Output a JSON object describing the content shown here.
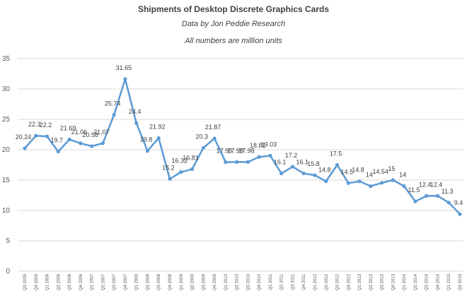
{
  "chart_data": {
    "type": "line",
    "title": "Shipments of Desktop Discrete Graphics Cards",
    "subtitle_1": "Data by Jon Peddie Research",
    "subtitle_2": "All numbers are million units",
    "xlabel": "",
    "ylabel": "",
    "ylim": [
      0,
      35
    ],
    "yticks": [
      0,
      5,
      10,
      15,
      20,
      25,
      30,
      35
    ],
    "grid": true,
    "legend": "none",
    "series_color": "#5b9bd5",
    "categories": [
      "Q3 2005",
      "Q4 2005",
      "Q1 2006",
      "Q2 2006",
      "Q3 2006",
      "Q4 2006",
      "Q1 2007",
      "Q2 2007",
      "Q3 2007",
      "Q4 2007",
      "Q1 2008",
      "Q2 2008",
      "Q3 2008",
      "Q4 2008",
      "Q1 2009",
      "Q2 2009",
      "Q3 2009",
      "Q4 2009",
      "Q1 2010",
      "Q2 2010",
      "Q3 2010",
      "Q4 2010",
      "Q1 2011",
      "Q2 2011",
      "Q3 2011",
      "Q4 2011",
      "Q1 2012",
      "Q2 2012",
      "Q3 2012",
      "Q4 2012",
      "Q1 2013",
      "Q2 2013",
      "Q3 2013",
      "Q4 2013",
      "Q1 2014",
      "Q2 2014",
      "Q3 2014",
      "Q4 2014",
      "Q1 2015",
      "Q2 2015"
    ],
    "values": [
      20.24,
      22.3,
      22.2,
      19.7,
      21.69,
      21.06,
      20.58,
      21.07,
      25.74,
      31.65,
      24.4,
      19.8,
      21.92,
      15.2,
      16.32,
      16.81,
      20.3,
      21.87,
      17.96,
      17.98,
      17.98,
      18.81,
      19.03,
      16.1,
      17.2,
      16.1,
      15.8,
      14.8,
      17.5,
      14.5,
      14.8,
      14,
      14.54,
      15,
      14,
      11.5,
      12.4,
      12.4,
      11.3,
      9.4
    ],
    "data_labels": [
      "20.24",
      "22.3",
      "22.2",
      "19.7",
      "21.69",
      "21.06",
      "20.58",
      "21.07",
      "25.74",
      "31.65",
      "24.4",
      "19.8",
      "21.92",
      "15.2",
      "16.32",
      "16.81",
      "20.3",
      "21.87",
      "17.96",
      "17.98",
      "17.98",
      "18.81",
      "19.03",
      "16.1",
      "17.2",
      "16.1",
      "15.8",
      "14.8",
      "17.5",
      "14.5",
      "14.8",
      "14",
      "14.54",
      "15",
      "14",
      "11.5",
      "12.4",
      "12.4",
      "11.3",
      "9.4"
    ]
  }
}
